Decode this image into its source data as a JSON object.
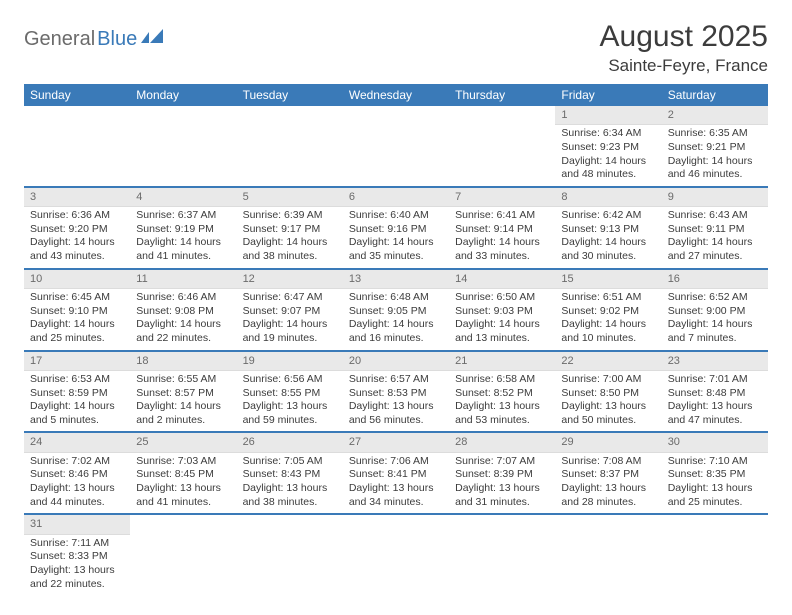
{
  "logo": {
    "general": "General",
    "blue": "Blue"
  },
  "header": {
    "month_title": "August 2025",
    "location": "Sainte-Feyre, France"
  },
  "colors": {
    "header_bg": "#3a7ab8",
    "header_text": "#ffffff",
    "daynum_bg": "#e9e9e9",
    "daynum_text": "#6b6b6b",
    "row_border": "#3a7ab8",
    "body_text": "#3c3c3c"
  },
  "day_headers": [
    "Sunday",
    "Monday",
    "Tuesday",
    "Wednesday",
    "Thursday",
    "Friday",
    "Saturday"
  ],
  "weeks": [
    [
      null,
      null,
      null,
      null,
      null,
      {
        "num": "1",
        "sunrise": "Sunrise: 6:34 AM",
        "sunset": "Sunset: 9:23 PM",
        "daylight": "Daylight: 14 hours and 48 minutes."
      },
      {
        "num": "2",
        "sunrise": "Sunrise: 6:35 AM",
        "sunset": "Sunset: 9:21 PM",
        "daylight": "Daylight: 14 hours and 46 minutes."
      }
    ],
    [
      {
        "num": "3",
        "sunrise": "Sunrise: 6:36 AM",
        "sunset": "Sunset: 9:20 PM",
        "daylight": "Daylight: 14 hours and 43 minutes."
      },
      {
        "num": "4",
        "sunrise": "Sunrise: 6:37 AM",
        "sunset": "Sunset: 9:19 PM",
        "daylight": "Daylight: 14 hours and 41 minutes."
      },
      {
        "num": "5",
        "sunrise": "Sunrise: 6:39 AM",
        "sunset": "Sunset: 9:17 PM",
        "daylight": "Daylight: 14 hours and 38 minutes."
      },
      {
        "num": "6",
        "sunrise": "Sunrise: 6:40 AM",
        "sunset": "Sunset: 9:16 PM",
        "daylight": "Daylight: 14 hours and 35 minutes."
      },
      {
        "num": "7",
        "sunrise": "Sunrise: 6:41 AM",
        "sunset": "Sunset: 9:14 PM",
        "daylight": "Daylight: 14 hours and 33 minutes."
      },
      {
        "num": "8",
        "sunrise": "Sunrise: 6:42 AM",
        "sunset": "Sunset: 9:13 PM",
        "daylight": "Daylight: 14 hours and 30 minutes."
      },
      {
        "num": "9",
        "sunrise": "Sunrise: 6:43 AM",
        "sunset": "Sunset: 9:11 PM",
        "daylight": "Daylight: 14 hours and 27 minutes."
      }
    ],
    [
      {
        "num": "10",
        "sunrise": "Sunrise: 6:45 AM",
        "sunset": "Sunset: 9:10 PM",
        "daylight": "Daylight: 14 hours and 25 minutes."
      },
      {
        "num": "11",
        "sunrise": "Sunrise: 6:46 AM",
        "sunset": "Sunset: 9:08 PM",
        "daylight": "Daylight: 14 hours and 22 minutes."
      },
      {
        "num": "12",
        "sunrise": "Sunrise: 6:47 AM",
        "sunset": "Sunset: 9:07 PM",
        "daylight": "Daylight: 14 hours and 19 minutes."
      },
      {
        "num": "13",
        "sunrise": "Sunrise: 6:48 AM",
        "sunset": "Sunset: 9:05 PM",
        "daylight": "Daylight: 14 hours and 16 minutes."
      },
      {
        "num": "14",
        "sunrise": "Sunrise: 6:50 AM",
        "sunset": "Sunset: 9:03 PM",
        "daylight": "Daylight: 14 hours and 13 minutes."
      },
      {
        "num": "15",
        "sunrise": "Sunrise: 6:51 AM",
        "sunset": "Sunset: 9:02 PM",
        "daylight": "Daylight: 14 hours and 10 minutes."
      },
      {
        "num": "16",
        "sunrise": "Sunrise: 6:52 AM",
        "sunset": "Sunset: 9:00 PM",
        "daylight": "Daylight: 14 hours and 7 minutes."
      }
    ],
    [
      {
        "num": "17",
        "sunrise": "Sunrise: 6:53 AM",
        "sunset": "Sunset: 8:59 PM",
        "daylight": "Daylight: 14 hours and 5 minutes."
      },
      {
        "num": "18",
        "sunrise": "Sunrise: 6:55 AM",
        "sunset": "Sunset: 8:57 PM",
        "daylight": "Daylight: 14 hours and 2 minutes."
      },
      {
        "num": "19",
        "sunrise": "Sunrise: 6:56 AM",
        "sunset": "Sunset: 8:55 PM",
        "daylight": "Daylight: 13 hours and 59 minutes."
      },
      {
        "num": "20",
        "sunrise": "Sunrise: 6:57 AM",
        "sunset": "Sunset: 8:53 PM",
        "daylight": "Daylight: 13 hours and 56 minutes."
      },
      {
        "num": "21",
        "sunrise": "Sunrise: 6:58 AM",
        "sunset": "Sunset: 8:52 PM",
        "daylight": "Daylight: 13 hours and 53 minutes."
      },
      {
        "num": "22",
        "sunrise": "Sunrise: 7:00 AM",
        "sunset": "Sunset: 8:50 PM",
        "daylight": "Daylight: 13 hours and 50 minutes."
      },
      {
        "num": "23",
        "sunrise": "Sunrise: 7:01 AM",
        "sunset": "Sunset: 8:48 PM",
        "daylight": "Daylight: 13 hours and 47 minutes."
      }
    ],
    [
      {
        "num": "24",
        "sunrise": "Sunrise: 7:02 AM",
        "sunset": "Sunset: 8:46 PM",
        "daylight": "Daylight: 13 hours and 44 minutes."
      },
      {
        "num": "25",
        "sunrise": "Sunrise: 7:03 AM",
        "sunset": "Sunset: 8:45 PM",
        "daylight": "Daylight: 13 hours and 41 minutes."
      },
      {
        "num": "26",
        "sunrise": "Sunrise: 7:05 AM",
        "sunset": "Sunset: 8:43 PM",
        "daylight": "Daylight: 13 hours and 38 minutes."
      },
      {
        "num": "27",
        "sunrise": "Sunrise: 7:06 AM",
        "sunset": "Sunset: 8:41 PM",
        "daylight": "Daylight: 13 hours and 34 minutes."
      },
      {
        "num": "28",
        "sunrise": "Sunrise: 7:07 AM",
        "sunset": "Sunset: 8:39 PM",
        "daylight": "Daylight: 13 hours and 31 minutes."
      },
      {
        "num": "29",
        "sunrise": "Sunrise: 7:08 AM",
        "sunset": "Sunset: 8:37 PM",
        "daylight": "Daylight: 13 hours and 28 minutes."
      },
      {
        "num": "30",
        "sunrise": "Sunrise: 7:10 AM",
        "sunset": "Sunset: 8:35 PM",
        "daylight": "Daylight: 13 hours and 25 minutes."
      }
    ],
    [
      {
        "num": "31",
        "sunrise": "Sunrise: 7:11 AM",
        "sunset": "Sunset: 8:33 PM",
        "daylight": "Daylight: 13 hours and 22 minutes."
      },
      null,
      null,
      null,
      null,
      null,
      null
    ]
  ]
}
